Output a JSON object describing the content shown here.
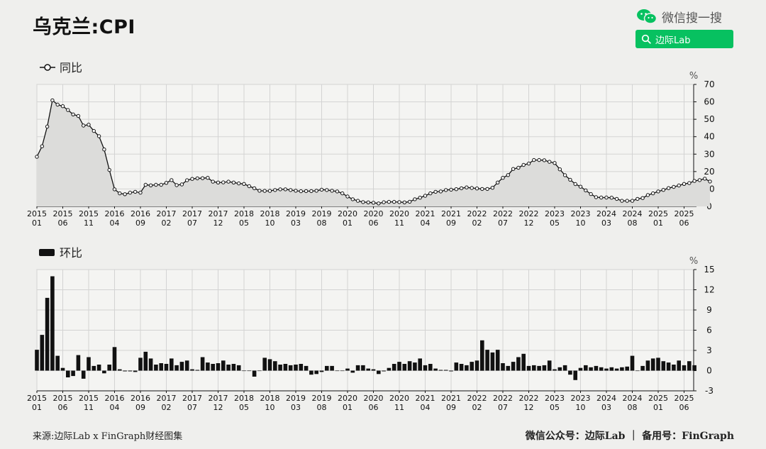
{
  "title": "乌克兰:CPI",
  "brand": {
    "name": "微信搜一搜",
    "search_text": "边际Lab",
    "icon": "wechat-icon",
    "accent": "#07c160"
  },
  "footer": {
    "source": "来源:边际Lab x FinGraph财经图集",
    "right": "微信公众号：边际Lab ｜ 备用号：FinGraph"
  },
  "chart_data": [
    {
      "type": "line",
      "legend": "同比",
      "unit": "%",
      "ylim": [
        0,
        70
      ],
      "yticks": [
        0,
        10,
        20,
        30,
        40,
        50,
        60,
        70
      ],
      "grid": true,
      "start": "2015-01",
      "tick_labels": [
        [
          "2015",
          "01"
        ],
        [
          "2015",
          "06"
        ],
        [
          "2015",
          "11"
        ],
        [
          "2016",
          "04"
        ],
        [
          "2016",
          "09"
        ],
        [
          "2017",
          "02"
        ],
        [
          "2017",
          "07"
        ],
        [
          "2017",
          "12"
        ],
        [
          "2018",
          "05"
        ],
        [
          "2018",
          "10"
        ],
        [
          "2019",
          "03"
        ],
        [
          "2019",
          "08"
        ],
        [
          "2020",
          "01"
        ],
        [
          "2020",
          "06"
        ],
        [
          "2020",
          "11"
        ],
        [
          "2021",
          "04"
        ],
        [
          "2021",
          "09"
        ],
        [
          "2022",
          "02"
        ],
        [
          "2022",
          "07"
        ],
        [
          "2022",
          "12"
        ],
        [
          "2023",
          "05"
        ],
        [
          "2023",
          "10"
        ],
        [
          "2024",
          "03"
        ],
        [
          "2024",
          "08"
        ],
        [
          "2025",
          "01"
        ],
        [
          "2025",
          "06"
        ]
      ],
      "values": [
        28.5,
        34.5,
        45.8,
        60.9,
        58.4,
        57.5,
        55.3,
        52.8,
        51.9,
        46.4,
        46.9,
        43.3,
        40.3,
        32.7,
        20.9,
        9.8,
        7.5,
        7.0,
        7.9,
        8.4,
        7.9,
        12.4,
        12.1,
        12.4,
        12.4,
        13.5,
        15.1,
        12.2,
        12.6,
        15.0,
        15.8,
        16.1,
        16.2,
        16.4,
        14.2,
        13.7,
        13.8,
        14.2,
        13.7,
        13.2,
        12.9,
        11.6,
        10.4,
        9.0,
        8.9,
        8.9,
        9.4,
        9.8,
        9.8,
        9.4,
        9.0,
        8.7,
        8.8,
        8.8,
        9.0,
        9.6,
        9.4,
        9.0,
        8.6,
        7.5,
        5.7,
        4.1,
        3.2,
        2.5,
        2.3,
        2.1,
        1.7,
        2.4,
        2.6,
        2.6,
        2.5,
        2.3,
        2.7,
        4.1,
        5.0,
        6.1,
        7.5,
        8.4,
        8.6,
        9.4,
        9.6,
        9.9,
        10.4,
        10.9,
        10.6,
        10.3,
        10.0,
        10.0,
        10.7,
        13.7,
        16.4,
        18.0,
        21.5,
        22.2,
        23.8,
        24.6,
        26.6,
        26.6,
        26.5,
        25.6,
        24.9,
        21.3,
        17.9,
        15.3,
        12.8,
        11.3,
        9.2,
        7.1,
        5.3,
        5.1,
        5.1,
        5.0,
        4.3,
        3.2,
        3.2,
        3.2,
        4.3,
        4.8,
        6.5,
        7.5,
        8.6,
        9.5,
        10.5,
        11.2,
        12.0,
        12.9,
        13.4,
        14.6,
        15.1,
        15.9,
        14.3
      ]
    },
    {
      "type": "bar",
      "legend": "环比",
      "unit": "%",
      "ylim": [
        -3,
        15
      ],
      "yticks": [
        -3,
        0,
        3,
        6,
        9,
        12,
        15
      ],
      "grid": true,
      "start": "2015-01",
      "tick_labels": [
        [
          "2015",
          "01"
        ],
        [
          "2015",
          "06"
        ],
        [
          "2015",
          "11"
        ],
        [
          "2016",
          "04"
        ],
        [
          "2016",
          "09"
        ],
        [
          "2017",
          "02"
        ],
        [
          "2017",
          "07"
        ],
        [
          "2017",
          "12"
        ],
        [
          "2018",
          "05"
        ],
        [
          "2018",
          "10"
        ],
        [
          "2019",
          "03"
        ],
        [
          "2019",
          "08"
        ],
        [
          "2020",
          "01"
        ],
        [
          "2020",
          "06"
        ],
        [
          "2020",
          "11"
        ],
        [
          "2021",
          "04"
        ],
        [
          "2021",
          "09"
        ],
        [
          "2022",
          "02"
        ],
        [
          "2022",
          "07"
        ],
        [
          "2022",
          "12"
        ],
        [
          "2023",
          "05"
        ],
        [
          "2023",
          "10"
        ],
        [
          "2024",
          "03"
        ],
        [
          "2024",
          "08"
        ],
        [
          "2025",
          "01"
        ],
        [
          "2025",
          "06"
        ]
      ],
      "values": [
        3.1,
        5.3,
        10.8,
        14.0,
        2.2,
        0.4,
        -1.0,
        -0.8,
        2.3,
        -1.2,
        2.0,
        0.7,
        0.9,
        -0.4,
        0.9,
        3.5,
        0.2,
        -0.1,
        -0.1,
        -0.2,
        1.9,
        2.8,
        1.8,
        0.9,
        1.1,
        1.0,
        1.8,
        0.8,
        1.3,
        1.5,
        0.2,
        0.1,
        2.0,
        1.2,
        1.0,
        1.1,
        1.5,
        0.9,
        1.0,
        0.8,
        0.0,
        0.0,
        -0.9,
        0.0,
        1.9,
        1.7,
        1.4,
        0.9,
        1.0,
        0.8,
        0.9,
        1.0,
        0.7,
        -0.6,
        -0.5,
        -0.2,
        0.7,
        0.7,
        0.0,
        0.0,
        0.3,
        -0.3,
        0.8,
        0.8,
        0.3,
        0.2,
        -0.5,
        -0.1,
        0.4,
        1.0,
        1.3,
        1.0,
        1.4,
        1.2,
        1.8,
        0.8,
        1.0,
        0.3,
        0.1,
        0.1,
        -0.1,
        1.2,
        1.0,
        0.8,
        1.3,
        1.5,
        4.5,
        3.1,
        2.7,
        3.1,
        1.1,
        0.7,
        1.3,
        2.0,
        2.5,
        0.7,
        0.8,
        0.7,
        0.8,
        1.5,
        0.2,
        0.5,
        0.8,
        -0.6,
        -1.4,
        0.4,
        0.8,
        0.5,
        0.7,
        0.5,
        0.3,
        0.5,
        0.3,
        0.5,
        0.6,
        2.2,
        0.0,
        0.7,
        1.5,
        1.8,
        1.9,
        1.4,
        1.2,
        0.9,
        1.5,
        0.8,
        1.4,
        0.8
      ]
    }
  ]
}
